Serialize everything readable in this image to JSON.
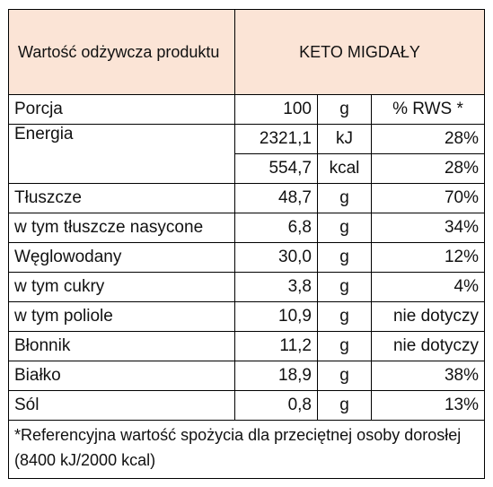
{
  "header": {
    "label": "Wartość odżywcza produktu",
    "product": "KETO MIGDAŁY"
  },
  "portion": {
    "label": "Porcja",
    "value": "100",
    "unit": "g",
    "rws": "% RWS *"
  },
  "energy": {
    "label": "Energia",
    "kj": {
      "value": "2321,1",
      "unit": "kJ",
      "rws": "28%"
    },
    "kcal": {
      "value": "554,7",
      "unit": "kcal",
      "rws": "28%"
    }
  },
  "rows": [
    {
      "label": "Tłuszcze",
      "value": "48,7",
      "unit": "g",
      "rws": "70%"
    },
    {
      "label": "w tym tłuszcze nasycone",
      "value": "6,8",
      "unit": "g",
      "rws": "34%"
    },
    {
      "label": "Węglowodany",
      "value": "30,0",
      "unit": "g",
      "rws": "12%"
    },
    {
      "label": "w tym cukry",
      "value": "3,8",
      "unit": "g",
      "rws": "4%"
    },
    {
      "label": "w tym poliole",
      "value": "10,9",
      "unit": "g",
      "rws": "nie dotyczy"
    },
    {
      "label": "Błonnik",
      "value": "11,2",
      "unit": "g",
      "rws": "nie dotyczy"
    },
    {
      "label": "Białko",
      "value": "18,9",
      "unit": "g",
      "rws": "38%"
    },
    {
      "label": "Sól",
      "value": "0,8",
      "unit": "g",
      "rws": "13%"
    }
  ],
  "footnote": "*Referencyjna wartość spożycia dla przeciętnej osoby dorosłej (8400 kJ/2000 kcal)",
  "colors": {
    "header_bg": "#fbe4d6",
    "border": "#000000"
  }
}
